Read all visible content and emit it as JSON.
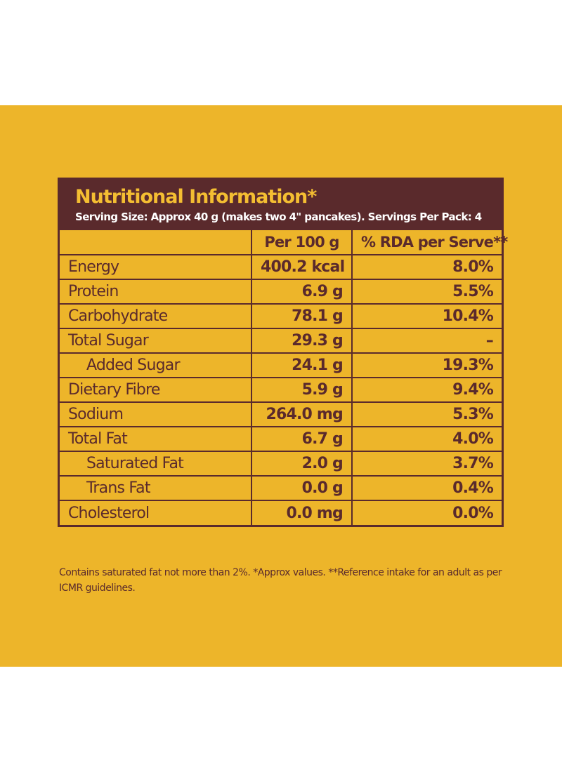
{
  "label": {
    "title": "Nutritional Information*",
    "serving_info": "Serving Size: Approx 40 g (makes two 4\" pancakes). Servings Per Pack: 4",
    "columns": {
      "nutrient": "",
      "per_100g": "Per 100 g",
      "rda": "% RDA per Serve**"
    },
    "rows": [
      {
        "nutrient": "Energy",
        "per_100g": "400.2 kcal",
        "rda": "8.0%",
        "sub": false
      },
      {
        "nutrient": "Protein",
        "per_100g": "6.9 g",
        "rda": "5.5%",
        "sub": false
      },
      {
        "nutrient": "Carbohydrate",
        "per_100g": "78.1 g",
        "rda": "10.4%",
        "sub": false
      },
      {
        "nutrient": "Total Sugar",
        "per_100g": "29.3 g",
        "rda": "–",
        "sub": false
      },
      {
        "nutrient": "Added Sugar",
        "per_100g": "24.1 g",
        "rda": "19.3%",
        "sub": true
      },
      {
        "nutrient": "Dietary Fibre",
        "per_100g": "5.9 g",
        "rda": "9.4%",
        "sub": false
      },
      {
        "nutrient": "Sodium",
        "per_100g": "264.0 mg",
        "rda": "5.3%",
        "sub": false
      },
      {
        "nutrient": "Total Fat",
        "per_100g": "6.7 g",
        "rda": "4.0%",
        "sub": false
      },
      {
        "nutrient": "Saturated Fat",
        "per_100g": "2.0 g",
        "rda": "3.7%",
        "sub": true
      },
      {
        "nutrient": "Trans Fat",
        "per_100g": "0.0 g",
        "rda": "0.4%",
        "sub": true
      },
      {
        "nutrient": "Cholesterol",
        "per_100g": "0.0 mg",
        "rda": "0.0%",
        "sub": false
      }
    ],
    "footnote": "Contains saturated fat not more than 2%. *Approx values. **Reference intake for an adult as per ICMR guidelines."
  },
  "colors": {
    "background": "#EDB52A",
    "brown": "#5A2A2C",
    "title_yellow": "#F4BE32"
  }
}
